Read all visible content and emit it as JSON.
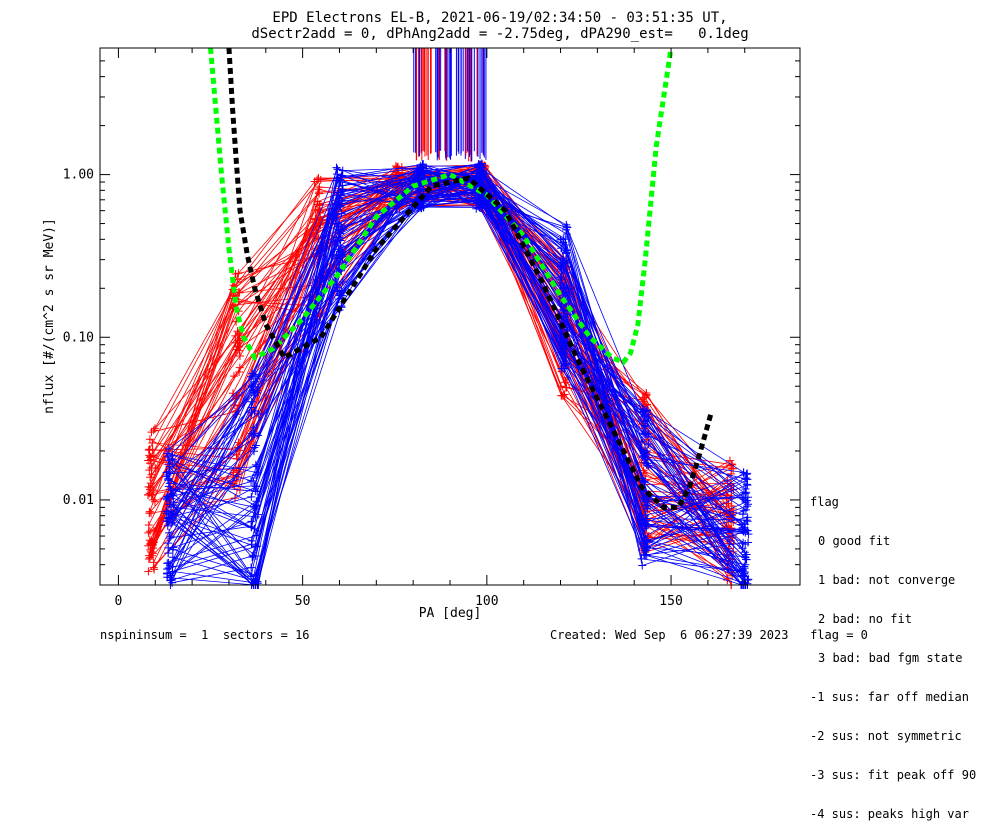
{
  "header": {
    "line1": "EPD Electrons EL-B, 2021-06-19/02:34:50 - 03:51:35 UT,",
    "line2": "dSectr2add = 0, dPhAng2add = -2.75deg, dPA290_est=   0.1deg"
  },
  "legend": {
    "title": "flag",
    "items": [
      "0 good fit",
      "1 bad: not converge",
      "2 bad: no fit",
      "3 bad: bad fgm state",
      "-1 sus: far off median",
      "-2 sus: not symmetric",
      "-3 sus: fit peak off 90",
      "-4 sus: peaks high var"
    ]
  },
  "footer": {
    "left": "nspininsum =  1  sectors = 16",
    "right": "Created: Wed Sep  6 06:27:39 2023   flag = 0"
  },
  "colors": {
    "blue": "#0000ff",
    "red": "#ff0000",
    "green": "#00ff00",
    "black": "#000000"
  },
  "chart_data": {
    "type": "line",
    "title": "EPD Electrons EL-B, 2021-06-19/02:34:50 - 03:51:35 UT,",
    "subtitle": "dSectr2add = 0, dPhAng2add = -2.75deg, dPA290_est=   0.1deg",
    "xlabel": "PA [deg]",
    "ylabel": "nflux [#/(cm^2 s sr MeV)]",
    "xlim": [
      -5,
      185
    ],
    "ylim": [
      0.003,
      6
    ],
    "yscale": "log",
    "xticks": [
      0,
      50,
      100,
      150
    ],
    "xtick_labels": [
      "0",
      "50",
      "100",
      "150"
    ],
    "yticks": [
      0.01,
      0.1,
      1.0
    ],
    "ytick_labels": [
      "0.01",
      "0.10",
      "1.00"
    ],
    "blue_pa": [
      14,
      37,
      60,
      82,
      98,
      121,
      143,
      170
    ],
    "red_pa": [
      9,
      32,
      54,
      76,
      99,
      121,
      143,
      166
    ],
    "blue_series_profile": [
      0.008,
      0.012,
      0.4,
      0.85,
      0.85,
      0.18,
      0.012,
      0.006
    ],
    "red_series_profile": [
      0.01,
      0.05,
      0.35,
      0.85,
      0.85,
      0.12,
      0.015,
      0.007
    ],
    "spread": [
      0.45,
      0.7,
      0.45,
      0.14,
      0.14,
      0.45,
      0.5,
      0.4
    ],
    "n_blue": 75,
    "n_red": 60,
    "green_fit": {
      "x": [
        25,
        28,
        30,
        32,
        34,
        37,
        42,
        50,
        60,
        70,
        80,
        90,
        100,
        110,
        120,
        128,
        134,
        137,
        139,
        141,
        143,
        146,
        150
      ],
      "y": [
        6,
        1.0,
        0.35,
        0.15,
        0.1,
        0.075,
        0.085,
        0.13,
        0.25,
        0.55,
        0.85,
        1.0,
        0.75,
        0.42,
        0.18,
        0.1,
        0.075,
        0.07,
        0.08,
        0.12,
        0.3,
        1.5,
        6
      ]
    },
    "black_fit": {
      "x": [
        30,
        31,
        32,
        33,
        35,
        37,
        40,
        45,
        55,
        70,
        85,
        95,
        105,
        115,
        125,
        135,
        142,
        148,
        152,
        155,
        158,
        161
      ],
      "y": [
        6,
        2.5,
        1.2,
        0.6,
        0.32,
        0.2,
        0.12,
        0.075,
        0.1,
        0.35,
        0.85,
        0.95,
        0.6,
        0.22,
        0.07,
        0.025,
        0.012,
        0.009,
        0.009,
        0.012,
        0.02,
        0.035
      ]
    }
  }
}
